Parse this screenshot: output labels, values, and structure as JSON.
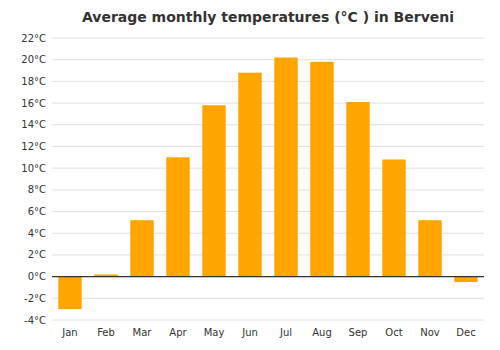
{
  "chart_data": {
    "type": "bar",
    "title": "Average monthly temperatures (°C ) in Berveni",
    "categories": [
      "Jan",
      "Feb",
      "Mar",
      "Apr",
      "May",
      "Jun",
      "Jul",
      "Aug",
      "Sep",
      "Oct",
      "Nov",
      "Dec"
    ],
    "values": [
      -3.0,
      0.2,
      5.2,
      11.0,
      15.8,
      18.8,
      20.2,
      19.8,
      16.1,
      10.8,
      5.2,
      -0.5
    ],
    "color": "#FFA500",
    "ylim": [
      -4,
      22
    ],
    "yticks": [
      {
        "value": -4,
        "label": "-4°C"
      },
      {
        "value": -2,
        "label": "-2°C"
      },
      {
        "value": 0,
        "label": "0°C"
      },
      {
        "value": 2,
        "label": "2°C"
      },
      {
        "value": 4,
        "label": "4°C"
      },
      {
        "value": 6,
        "label": "6°C"
      },
      {
        "value": 8,
        "label": "8°C"
      },
      {
        "value": 10,
        "label": "10°C"
      },
      {
        "value": 12,
        "label": "12°C"
      },
      {
        "value": 14,
        "label": "14°C"
      },
      {
        "value": 16,
        "label": "16°C"
      },
      {
        "value": 18,
        "label": "18°C"
      },
      {
        "value": 20,
        "label": "20°C"
      },
      {
        "value": 22,
        "label": "22°C"
      }
    ],
    "grid": true
  }
}
